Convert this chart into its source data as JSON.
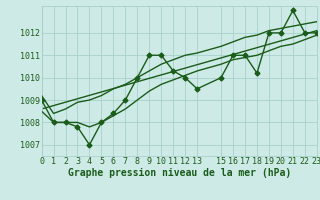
{
  "title": "Graphe pression niveau de la mer (hPa)",
  "background_color": "#ceeae6",
  "grid_color": "#a8d0cb",
  "line_color": "#1a5c1a",
  "hours": [
    0,
    1,
    2,
    3,
    4,
    5,
    6,
    7,
    8,
    9,
    10,
    11,
    12,
    13,
    15,
    16,
    17,
    18,
    19,
    20,
    21,
    22,
    23
  ],
  "pressure": [
    1009.0,
    1008.0,
    1008.0,
    1007.8,
    1007.0,
    1008.0,
    1008.4,
    1009.0,
    1010.0,
    1011.0,
    1011.0,
    1010.3,
    1010.0,
    1009.5,
    1010.0,
    1011.0,
    1011.0,
    1010.2,
    1012.0,
    1012.0,
    1013.0,
    1012.0,
    1012.0
  ],
  "min_line": [
    1008.5,
    1008.0,
    1008.0,
    1008.0,
    1007.8,
    1008.0,
    1008.3,
    1008.6,
    1009.0,
    1009.4,
    1009.7,
    1009.9,
    1010.1,
    1010.3,
    1010.6,
    1010.8,
    1010.9,
    1011.0,
    1011.2,
    1011.4,
    1011.5,
    1011.7,
    1011.9
  ],
  "max_line": [
    1009.2,
    1008.4,
    1008.6,
    1008.9,
    1009.0,
    1009.2,
    1009.5,
    1009.7,
    1010.0,
    1010.3,
    1010.6,
    1010.8,
    1011.0,
    1011.1,
    1011.4,
    1011.6,
    1011.8,
    1011.9,
    1012.1,
    1012.2,
    1012.3,
    1012.4,
    1012.5
  ],
  "trend_x": [
    0,
    23
  ],
  "trend_y": [
    1008.6,
    1012.1
  ],
  "ylim": [
    1006.5,
    1013.2
  ],
  "xlim": [
    0,
    23
  ],
  "xticks": [
    0,
    1,
    2,
    3,
    4,
    5,
    6,
    7,
    8,
    9,
    10,
    11,
    12,
    13,
    15,
    16,
    17,
    18,
    19,
    20,
    21,
    22,
    23
  ],
  "yticks": [
    1007,
    1008,
    1009,
    1010,
    1011,
    1012
  ],
  "marker": "D",
  "marker_size": 2.5,
  "line_width": 1.0,
  "tick_fontsize": 6.0,
  "label_fontsize": 7.0
}
